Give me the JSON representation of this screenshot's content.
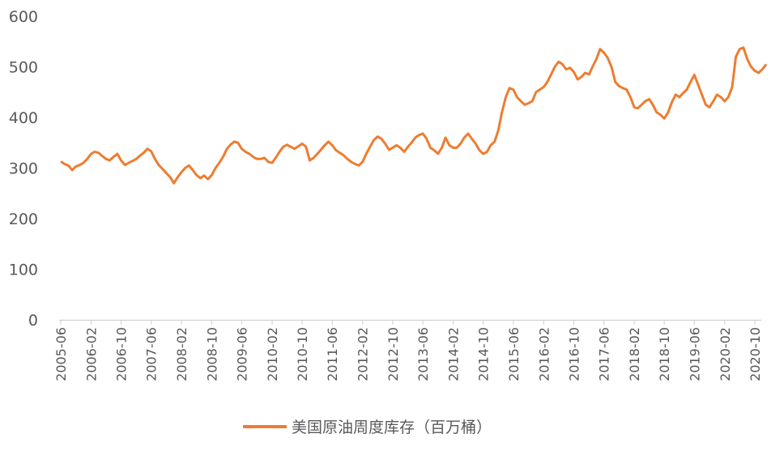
{
  "chart_data": {
    "type": "line",
    "title": "",
    "xlabel": "",
    "ylabel": "",
    "ylim": [
      0,
      600
    ],
    "y_ticks": [
      "0",
      "100",
      "200",
      "300",
      "400",
      "500",
      "600"
    ],
    "x_ticks": [
      "2005-06",
      "2006-02",
      "2006-10",
      "2007-06",
      "2008-02",
      "2008-10",
      "2009-06",
      "2010-02",
      "2010-10",
      "2011-06",
      "2012-02",
      "2012-10",
      "2013-06",
      "2014-02",
      "2014-10",
      "2015-06",
      "2016-02",
      "2016-10",
      "2017-06",
      "2018-02",
      "2018-10",
      "2019-06",
      "2020-02",
      "2020-10"
    ],
    "grid": false,
    "legend_position": "bottom",
    "color": "#ED7D31",
    "series": [
      {
        "name": "美国原油周度库存（百万桶）",
        "points": [
          [
            "2005-06-01",
            313
          ],
          [
            "2005-07-01",
            308
          ],
          [
            "2005-08-01",
            305
          ],
          [
            "2005-09-01",
            296
          ],
          [
            "2005-10-01",
            303
          ],
          [
            "2005-11-01",
            306
          ],
          [
            "2005-12-01",
            310
          ],
          [
            "2006-01-01",
            318
          ],
          [
            "2006-02-01",
            328
          ],
          [
            "2006-03-01",
            332
          ],
          [
            "2006-04-01",
            330
          ],
          [
            "2006-05-01",
            324
          ],
          [
            "2006-06-01",
            318
          ],
          [
            "2006-07-01",
            315
          ],
          [
            "2006-08-01",
            322
          ],
          [
            "2006-09-01",
            328
          ],
          [
            "2006-10-01",
            315
          ],
          [
            "2006-11-01",
            306
          ],
          [
            "2006-12-01",
            310
          ],
          [
            "2007-01-01",
            314
          ],
          [
            "2007-02-01",
            318
          ],
          [
            "2007-03-01",
            324
          ],
          [
            "2007-04-01",
            330
          ],
          [
            "2007-05-01",
            338
          ],
          [
            "2007-06-01",
            333
          ],
          [
            "2007-07-01",
            318
          ],
          [
            "2007-08-01",
            306
          ],
          [
            "2007-09-01",
            298
          ],
          [
            "2007-10-01",
            290
          ],
          [
            "2007-11-01",
            282
          ],
          [
            "2007-12-01",
            270
          ],
          [
            "2008-01-01",
            282
          ],
          [
            "2008-02-01",
            292
          ],
          [
            "2008-03-01",
            300
          ],
          [
            "2008-04-01",
            305
          ],
          [
            "2008-05-01",
            296
          ],
          [
            "2008-06-01",
            286
          ],
          [
            "2008-07-01",
            280
          ],
          [
            "2008-08-01",
            285
          ],
          [
            "2008-09-01",
            278
          ],
          [
            "2008-10-01",
            286
          ],
          [
            "2008-11-01",
            300
          ],
          [
            "2008-12-01",
            310
          ],
          [
            "2009-01-01",
            322
          ],
          [
            "2009-02-01",
            338
          ],
          [
            "2009-03-01",
            346
          ],
          [
            "2009-04-01",
            352
          ],
          [
            "2009-05-01",
            350
          ],
          [
            "2009-06-01",
            338
          ],
          [
            "2009-07-01",
            332
          ],
          [
            "2009-08-01",
            328
          ],
          [
            "2009-09-01",
            322
          ],
          [
            "2009-10-01",
            318
          ],
          [
            "2009-11-01",
            318
          ],
          [
            "2009-12-01",
            320
          ],
          [
            "2010-01-01",
            312
          ],
          [
            "2010-02-01",
            310
          ],
          [
            "2010-03-01",
            320
          ],
          [
            "2010-04-01",
            332
          ],
          [
            "2010-05-01",
            342
          ],
          [
            "2010-06-01",
            346
          ],
          [
            "2010-07-01",
            342
          ],
          [
            "2010-08-01",
            338
          ],
          [
            "2010-09-01",
            343
          ],
          [
            "2010-10-01",
            348
          ],
          [
            "2010-11-01",
            342
          ],
          [
            "2010-12-01",
            315
          ],
          [
            "2011-01-01",
            320
          ],
          [
            "2011-02-01",
            328
          ],
          [
            "2011-03-01",
            336
          ],
          [
            "2011-04-01",
            345
          ],
          [
            "2011-05-01",
            352
          ],
          [
            "2011-06-01",
            345
          ],
          [
            "2011-07-01",
            335
          ],
          [
            "2011-08-01",
            330
          ],
          [
            "2011-09-01",
            325
          ],
          [
            "2011-10-01",
            318
          ],
          [
            "2011-11-01",
            312
          ],
          [
            "2011-12-01",
            308
          ],
          [
            "2012-01-01",
            305
          ],
          [
            "2012-02-01",
            312
          ],
          [
            "2012-03-01",
            328
          ],
          [
            "2012-04-01",
            342
          ],
          [
            "2012-05-01",
            355
          ],
          [
            "2012-06-01",
            362
          ],
          [
            "2012-07-01",
            358
          ],
          [
            "2012-08-01",
            348
          ],
          [
            "2012-09-01",
            336
          ],
          [
            "2012-10-01",
            340
          ],
          [
            "2012-11-01",
            345
          ],
          [
            "2012-12-01",
            340
          ],
          [
            "2013-01-01",
            332
          ],
          [
            "2013-02-01",
            342
          ],
          [
            "2013-03-01",
            350
          ],
          [
            "2013-04-01",
            360
          ],
          [
            "2013-05-01",
            365
          ],
          [
            "2013-06-01",
            368
          ],
          [
            "2013-07-01",
            358
          ],
          [
            "2013-08-01",
            340
          ],
          [
            "2013-09-01",
            335
          ],
          [
            "2013-10-01",
            328
          ],
          [
            "2013-11-01",
            340
          ],
          [
            "2013-12-01",
            360
          ],
          [
            "2014-01-01",
            345
          ],
          [
            "2014-02-01",
            340
          ],
          [
            "2014-03-01",
            340
          ],
          [
            "2014-04-01",
            348
          ],
          [
            "2014-05-01",
            360
          ],
          [
            "2014-06-01",
            368
          ],
          [
            "2014-07-01",
            358
          ],
          [
            "2014-08-01",
            348
          ],
          [
            "2014-09-01",
            335
          ],
          [
            "2014-10-01",
            328
          ],
          [
            "2014-11-01",
            332
          ],
          [
            "2014-12-01",
            345
          ],
          [
            "2015-01-01",
            352
          ],
          [
            "2015-02-01",
            375
          ],
          [
            "2015-03-01",
            410
          ],
          [
            "2015-04-01",
            440
          ],
          [
            "2015-05-01",
            458
          ],
          [
            "2015-06-01",
            455
          ],
          [
            "2015-07-01",
            440
          ],
          [
            "2015-08-01",
            432
          ],
          [
            "2015-09-01",
            425
          ],
          [
            "2015-10-01",
            428
          ],
          [
            "2015-11-01",
            432
          ],
          [
            "2015-12-01",
            450
          ],
          [
            "2016-01-01",
            455
          ],
          [
            "2016-02-01",
            460
          ],
          [
            "2016-03-01",
            470
          ],
          [
            "2016-04-01",
            485
          ],
          [
            "2016-05-01",
            500
          ],
          [
            "2016-06-01",
            510
          ],
          [
            "2016-07-01",
            505
          ],
          [
            "2016-08-01",
            495
          ],
          [
            "2016-09-01",
            498
          ],
          [
            "2016-10-01",
            490
          ],
          [
            "2016-11-01",
            475
          ],
          [
            "2016-12-01",
            480
          ],
          [
            "2017-01-01",
            488
          ],
          [
            "2017-02-01",
            485
          ],
          [
            "2017-03-01",
            500
          ],
          [
            "2017-04-01",
            515
          ],
          [
            "2017-05-01",
            535
          ],
          [
            "2017-06-01",
            528
          ],
          [
            "2017-07-01",
            518
          ],
          [
            "2017-08-01",
            500
          ],
          [
            "2017-09-01",
            470
          ],
          [
            "2017-10-01",
            462
          ],
          [
            "2017-11-01",
            458
          ],
          [
            "2017-12-01",
            455
          ],
          [
            "2018-01-01",
            440
          ],
          [
            "2018-02-01",
            420
          ],
          [
            "2018-03-01",
            418
          ],
          [
            "2018-04-01",
            425
          ],
          [
            "2018-05-01",
            432
          ],
          [
            "2018-06-01",
            436
          ],
          [
            "2018-07-01",
            425
          ],
          [
            "2018-08-01",
            410
          ],
          [
            "2018-09-01",
            405
          ],
          [
            "2018-10-01",
            398
          ],
          [
            "2018-11-01",
            410
          ],
          [
            "2018-12-01",
            430
          ],
          [
            "2019-01-01",
            445
          ],
          [
            "2019-02-01",
            440
          ],
          [
            "2019-03-01",
            448
          ],
          [
            "2019-04-01",
            455
          ],
          [
            "2019-05-01",
            470
          ],
          [
            "2019-06-01",
            484
          ],
          [
            "2019-07-01",
            465
          ],
          [
            "2019-08-01",
            445
          ],
          [
            "2019-09-01",
            425
          ],
          [
            "2019-10-01",
            420
          ],
          [
            "2019-11-01",
            432
          ],
          [
            "2019-12-01",
            445
          ],
          [
            "2020-01-01",
            440
          ],
          [
            "2020-02-01",
            432
          ],
          [
            "2020-03-01",
            440
          ],
          [
            "2020-04-01",
            460
          ],
          [
            "2020-05-01",
            520
          ],
          [
            "2020-06-01",
            535
          ],
          [
            "2020-07-01",
            538
          ],
          [
            "2020-08-01",
            515
          ],
          [
            "2020-09-01",
            500
          ],
          [
            "2020-10-01",
            492
          ],
          [
            "2020-11-01",
            488
          ],
          [
            "2020-12-01",
            495
          ],
          [
            "2021-01-01",
            505
          ]
        ]
      }
    ]
  }
}
